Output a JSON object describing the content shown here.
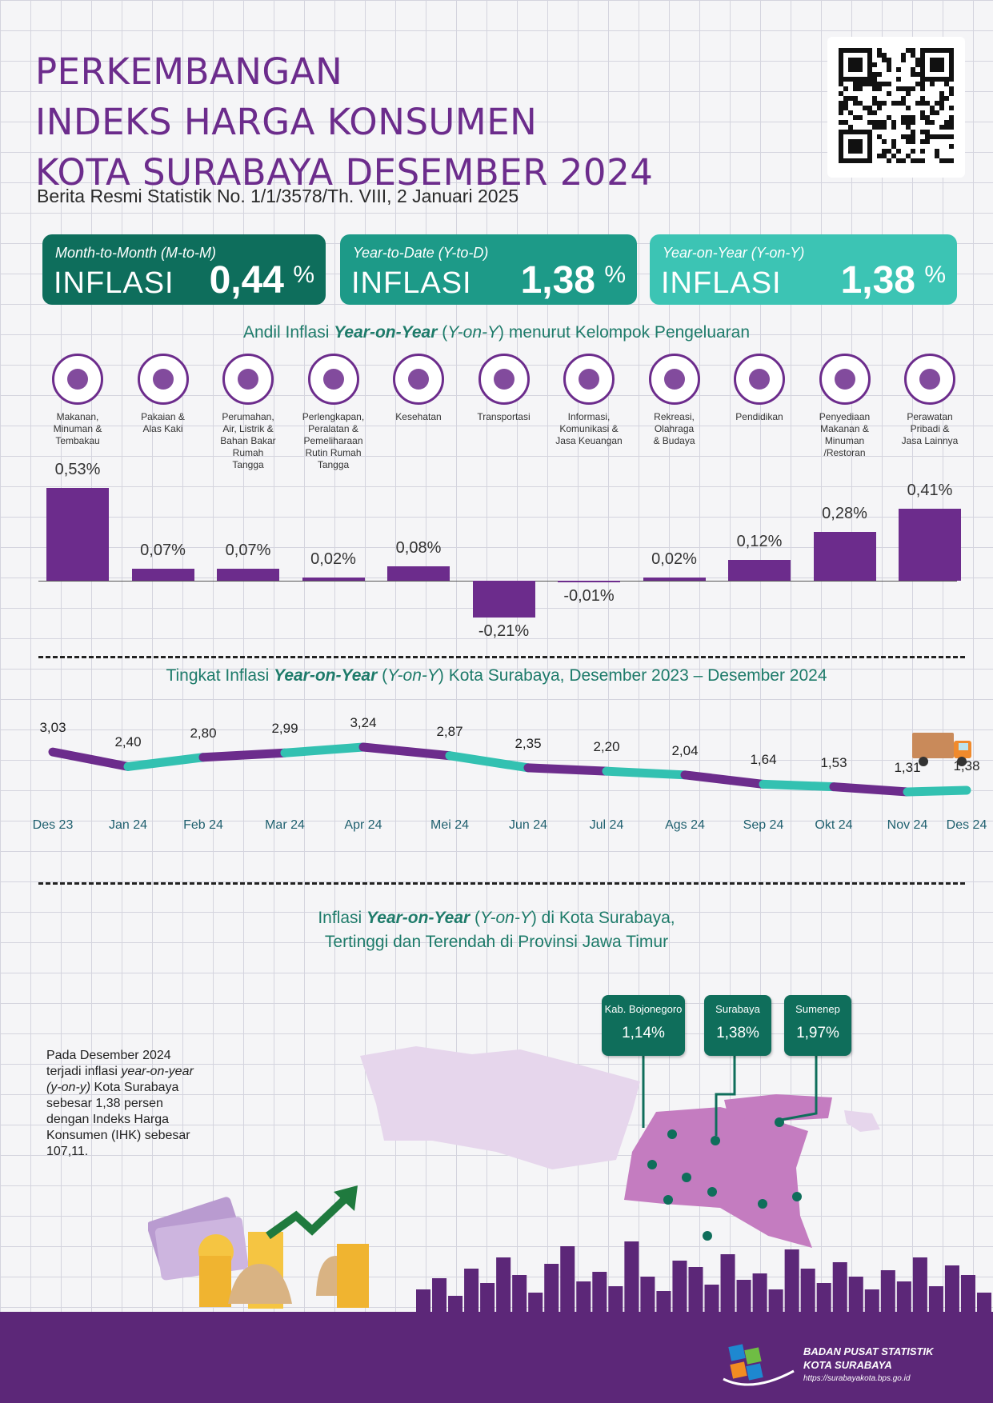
{
  "header": {
    "title_lines": [
      "PERKEMBANGAN",
      "INDEKS HARGA KONSUMEN",
      "KOTA SURABAYA DESEMBER 2024"
    ],
    "subtitle": "Berita Resmi Statistik No. 1/1/3578/Th. VIII, 2 Januari 2025"
  },
  "cards": [
    {
      "label": "Month-to-Month (M-to-M)",
      "word": "INFLASI",
      "value": "0,44",
      "unit": "%",
      "color": "#0e6e5c"
    },
    {
      "label": "Year-to-Date (Y-to-D)",
      "word": "INFLASI",
      "value": "1,38",
      "unit": "%",
      "color": "#1d9a88"
    },
    {
      "label": "Year-on-Year (Y-on-Y)",
      "word": "INFLASI",
      "value": "1,38",
      "unit": "%",
      "color": "#3cc4b4"
    }
  ],
  "section1": {
    "pre": "Andil Inflasi ",
    "em": "Year-on-Year",
    "mid": " (",
    "em2": "Y-on-Y",
    "post": ") menurut Kelompok Pengeluaran"
  },
  "section2": {
    "pre": "Tingkat Inflasi ",
    "em": "Year-on-Year",
    "mid": " (",
    "em2": "Y-on-Y",
    "post": ") Kota Surabaya, Desember 2023 – Desember 2024"
  },
  "section3": {
    "pre": "Inflasi ",
    "em": "Year-on-Year",
    "mid": " (",
    "em2": "Y-on-Y",
    "post": ") di Kota Surabaya,",
    "line2": "Tertinggi dan Terendah di Provinsi Jawa Timur"
  },
  "chart_data": [
    {
      "type": "bar",
      "categories": [
        "Makanan, Minuman & Tembakau",
        "Pakaian & Alas Kaki",
        "Perumahan, Air, Listrik & Bahan Bakar Rumah Tangga",
        "Perlengkapan, Peralatan & Pemeliharaan Rutin Rumah Tangga",
        "Kesehatan",
        "Transportasi",
        "Informasi, Komunikasi & Jasa Keuangan",
        "Rekreasi, Olahraga & Budaya",
        "Pendidikan",
        "Penyediaan Makanan & Minuman /Restoran",
        "Perawatan Pribadi & Jasa Lainnya"
      ],
      "values": [
        0.53,
        0.07,
        0.07,
        0.02,
        0.08,
        -0.21,
        -0.01,
        0.02,
        0.12,
        0.28,
        0.41
      ],
      "labels": [
        "0,53%",
        "0,07%",
        "0,07%",
        "0,02%",
        "0,08%",
        "-0,21%",
        "-0,01%",
        "0,02%",
        "0,12%",
        "0,28%",
        "0,41%"
      ],
      "category_lines": [
        [
          "Makanan,",
          "Minuman &",
          "Tembakau"
        ],
        [
          "Pakaian &",
          "Alas Kaki"
        ],
        [
          "Perumahan,",
          "Air, Listrik &",
          "Bahan Bakar",
          "Rumah",
          "Tangga"
        ],
        [
          "Perlengkapan,",
          "Peralatan &",
          "Pemeliharaan",
          "Rutin Rumah",
          "Tangga"
        ],
        [
          "Kesehatan"
        ],
        [
          "Transportasi"
        ],
        [
          "Informasi,",
          "Komunikasi &",
          "Jasa Keuangan"
        ],
        [
          "Rekreasi,",
          "Olahraga",
          "& Budaya"
        ],
        [
          "Pendidikan"
        ],
        [
          "Penyediaan",
          "Makanan &",
          "Minuman",
          "/Restoran"
        ],
        [
          "Perawatan",
          "Pribadi &",
          "Jasa Lainnya"
        ]
      ],
      "icons": [
        "grocery-basket-icon",
        "dress-icon",
        "house-icon",
        "plug-icon",
        "first-aid-kit-icon",
        "airplane-icon",
        "smartphone-icon",
        "soccer-player-icon",
        "graduation-cap-icon",
        "burger-drink-icon",
        "scissors-comb-icon"
      ],
      "bar_color": "#6c2c8c"
    },
    {
      "type": "line",
      "x": [
        "Des 23",
        "Jan 24",
        "Feb 24",
        "Mar 24",
        "Apr 24",
        "Mei 24",
        "Jun 24",
        "Jul 24",
        "Ags 24",
        "Sep 24",
        "Okt 24",
        "Nov 24",
        "Des 24"
      ],
      "values": [
        3.03,
        2.4,
        2.8,
        2.99,
        3.24,
        2.87,
        2.35,
        2.2,
        2.04,
        1.64,
        1.53,
        1.31,
        1.38
      ],
      "labels": [
        "3,03",
        "2,40",
        "2,80",
        "2,99",
        "3,24",
        "2,87",
        "2,35",
        "2,20",
        "2,04",
        "1,64",
        "1,53",
        "1,31",
        "1,38"
      ],
      "colors": [
        "#6c2c8c",
        "#33c1b1"
      ]
    }
  ],
  "map": {
    "callouts": [
      {
        "name": "Kab. Bojonegoro",
        "value": "1,14%"
      },
      {
        "name": "Surabaya",
        "value": "1,38%"
      },
      {
        "name": "Sumenep",
        "value": "1,97%"
      }
    ],
    "paragraph": {
      "l1": "Pada Desember 2024",
      "l2a": "terjadi inflasi ",
      "l2b": "year-on-year",
      "l3a": "(y-on-y)",
      "l3b": " Kota Surabaya",
      "l4": "sebesar 1,38 persen",
      "l5": "dengan Indeks Harga",
      "l6": "Konsumen (IHK) sebesar",
      "l7": "107,11."
    },
    "java_color": "#e6d6ec",
    "east_java_color": "#c47cc0",
    "dot_color": "#0f6e5b"
  },
  "footer": {
    "org_line1": "BADAN PUSAT STATISTIK",
    "org_line2": "KOTA SURABAYA",
    "url": "https://surabayakota.bps.go.id",
    "color": "#5c2778"
  }
}
